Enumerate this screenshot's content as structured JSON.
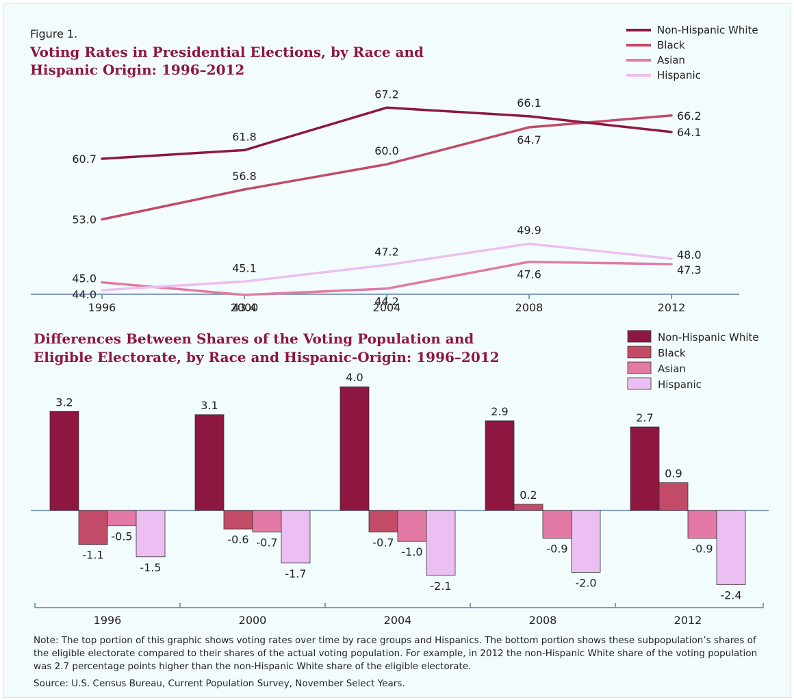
{
  "figure_label": "Figure 1.",
  "colors": {
    "white": "#8e1741",
    "black": "#c24b68",
    "asian": "#e27aa5",
    "hispanic": "#ebbff1",
    "axis": "#5c7cb0",
    "title": "#8e1741"
  },
  "chart_data": [
    {
      "type": "line",
      "title_lines": [
        "Voting Rates in Presidential Elections, by Race and",
        "Hispanic Origin: 1996–2012"
      ],
      "categories": [
        "1996",
        "2000",
        "2004",
        "2008",
        "2012"
      ],
      "ylim": [
        42,
        68
      ],
      "series": [
        {
          "name": "Non-Hispanic White",
          "key": "white",
          "values": [
            60.7,
            61.8,
            67.2,
            66.1,
            64.1
          ]
        },
        {
          "name": "Black",
          "key": "black",
          "values": [
            53.0,
            56.8,
            60.0,
            64.7,
            66.2
          ]
        },
        {
          "name": "Asian",
          "key": "asian",
          "values": [
            45.0,
            43.4,
            44.2,
            47.6,
            47.3
          ]
        },
        {
          "name": "Hispanic",
          "key": "hispanic",
          "values": [
            44.0,
            45.1,
            47.2,
            49.9,
            48.0
          ]
        }
      ],
      "legend_position": "top-right",
      "grid": false
    },
    {
      "type": "bar",
      "title_lines": [
        "Differences Between Shares of the Voting Population and",
        "Eligible Electorate, by Race and Hispanic-Origin: 1996–2012"
      ],
      "categories": [
        "1996",
        "2000",
        "2004",
        "2008",
        "2012"
      ],
      "ylim": [
        -2.5,
        4.2
      ],
      "series": [
        {
          "name": "Non-Hispanic White",
          "key": "white",
          "values": [
            3.2,
            3.1,
            4.0,
            2.9,
            2.7
          ]
        },
        {
          "name": "Black",
          "key": "black",
          "values": [
            -1.1,
            -0.6,
            -0.7,
            0.2,
            0.9
          ]
        },
        {
          "name": "Asian",
          "key": "asian",
          "values": [
            -0.5,
            -0.7,
            -1.0,
            -0.9,
            -0.9
          ]
        },
        {
          "name": "Hispanic",
          "key": "hispanic",
          "values": [
            -1.5,
            -1.7,
            -2.1,
            -2.0,
            -2.4
          ]
        }
      ],
      "legend_position": "top-right",
      "grid": false
    }
  ],
  "note": "Note: The top portion of this graphic shows voting rates over time by race groups and Hispanics. The bottom portion shows these subpopulation’s shares of the eligible electorate compared to their shares of the actual voting population. For example, in 2012 the non-Hispanic White share of the voting population was 2.7 percentage points higher than the non-Hispanic White share of the eligible electorate.",
  "source": "Source: U.S. Census Bureau, Current Population Survey, November Select Years."
}
